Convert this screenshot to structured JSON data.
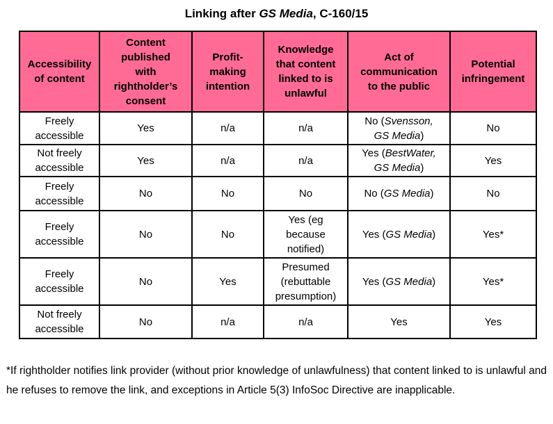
{
  "title": {
    "prefix": "Linking after ",
    "case_name": "GS Media",
    "suffix": ", C-160/15"
  },
  "table": {
    "headers": [
      "Accessibility\nof content",
      "Content\npublished\nwith\nrightholder’s\nconsent",
      "Profit-\nmaking\nintention",
      "Knowledge\nthat content\nlinked to is\nunlawful",
      "Act of\ncommunication\nto the public",
      "Potential\ninfringement"
    ],
    "rows": [
      [
        [
          {
            "text": "Freely\naccessible",
            "italic": false
          }
        ],
        [
          {
            "text": "Yes",
            "italic": false
          }
        ],
        [
          {
            "text": "n/a",
            "italic": false
          }
        ],
        [
          {
            "text": "n/a",
            "italic": false
          }
        ],
        [
          {
            "text": "No (",
            "italic": false
          },
          {
            "text": "Svensson,",
            "italic": true
          },
          {
            "text": "\n",
            "italic": false
          },
          {
            "text": "GS Media",
            "italic": true
          },
          {
            "text": ")",
            "italic": false
          }
        ],
        [
          {
            "text": "No",
            "italic": false
          }
        ]
      ],
      [
        [
          {
            "text": "Not freely\naccessible",
            "italic": false
          }
        ],
        [
          {
            "text": "Yes",
            "italic": false
          }
        ],
        [
          {
            "text": "n/a",
            "italic": false
          }
        ],
        [
          {
            "text": "n/a",
            "italic": false
          }
        ],
        [
          {
            "text": "Yes (",
            "italic": false
          },
          {
            "text": "BestWater,",
            "italic": true
          },
          {
            "text": "\n",
            "italic": false
          },
          {
            "text": "GS Media",
            "italic": true
          },
          {
            "text": ")",
            "italic": false
          }
        ],
        [
          {
            "text": "Yes",
            "italic": false
          }
        ]
      ],
      [
        [
          {
            "text": "Freely\naccessible",
            "italic": false
          }
        ],
        [
          {
            "text": "No",
            "italic": false
          }
        ],
        [
          {
            "text": "No",
            "italic": false
          }
        ],
        [
          {
            "text": "No",
            "italic": false
          }
        ],
        [
          {
            "text": "No (",
            "italic": false
          },
          {
            "text": "GS Media",
            "italic": true
          },
          {
            "text": ")",
            "italic": false
          }
        ],
        [
          {
            "text": "No",
            "italic": false
          }
        ]
      ],
      [
        [
          {
            "text": "Freely\naccessible",
            "italic": false
          }
        ],
        [
          {
            "text": "No",
            "italic": false
          }
        ],
        [
          {
            "text": "No",
            "italic": false
          }
        ],
        [
          {
            "text": "Yes (eg\nbecause\nnotified)",
            "italic": false
          }
        ],
        [
          {
            "text": "Yes (",
            "italic": false
          },
          {
            "text": "GS Media",
            "italic": true
          },
          {
            "text": ")",
            "italic": false
          }
        ],
        [
          {
            "text": "Yes*",
            "italic": false
          }
        ]
      ],
      [
        [
          {
            "text": "Freely\naccessible",
            "italic": false
          }
        ],
        [
          {
            "text": "No",
            "italic": false
          }
        ],
        [
          {
            "text": "Yes",
            "italic": false
          }
        ],
        [
          {
            "text": "Presumed\n(rebuttable\npresumption)",
            "italic": false
          }
        ],
        [
          {
            "text": "Yes (",
            "italic": false
          },
          {
            "text": "GS Media",
            "italic": true
          },
          {
            "text": ")",
            "italic": false
          }
        ],
        [
          {
            "text": "Yes*",
            "italic": false
          }
        ]
      ],
      [
        [
          {
            "text": "Not freely\naccessible",
            "italic": false
          }
        ],
        [
          {
            "text": "No",
            "italic": false
          }
        ],
        [
          {
            "text": "n/a",
            "italic": false
          }
        ],
        [
          {
            "text": "n/a",
            "italic": false
          }
        ],
        [
          {
            "text": "Yes",
            "italic": false
          }
        ],
        [
          {
            "text": "Yes",
            "italic": false
          }
        ]
      ]
    ]
  },
  "footnote": "*If rightholder notifies link provider (without prior knowledge of unlawfulness) that content linked to is unlawful and he refuses to remove the link, and exceptions in Article 5(3) InfoSoc Directive are inapplicable.",
  "colors": {
    "header_bg": "#FF6B95",
    "border": "#000000",
    "text": "#000000"
  }
}
